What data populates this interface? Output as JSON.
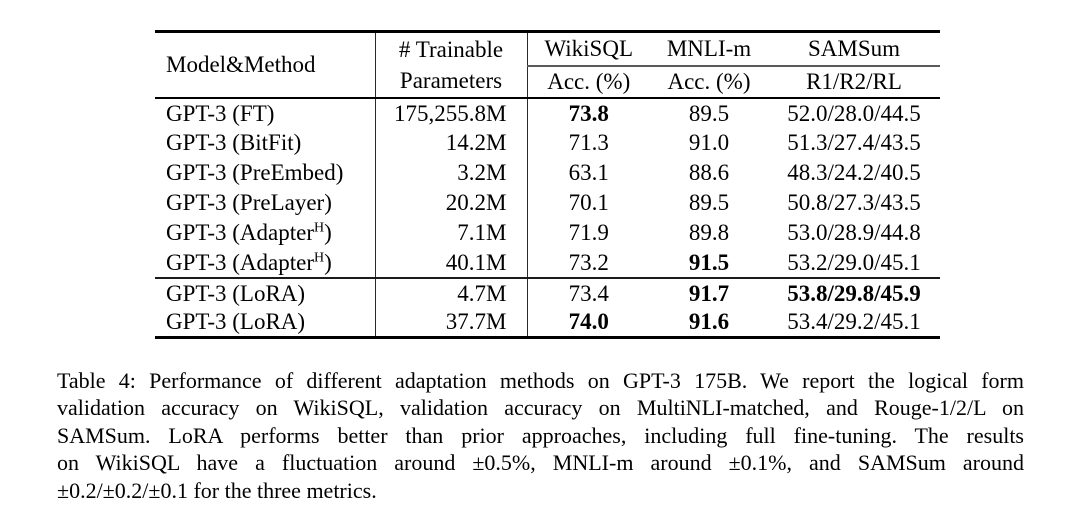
{
  "table": {
    "header": {
      "model_method": "Model&Method",
      "trainable_line1": "# Trainable",
      "trainable_line2": "Parameters",
      "groups": [
        {
          "title": "WikiSQL",
          "subtitle": "Acc. (%)"
        },
        {
          "title": "MNLI-m",
          "subtitle": "Acc. (%)"
        },
        {
          "title": "SAMSum",
          "subtitle": "R1/R2/RL"
        }
      ]
    },
    "groups": [
      {
        "rows": [
          {
            "model_prefix": "GPT-3 (FT)",
            "model_sup": "",
            "model_suffix": "",
            "params": "175,255.8M",
            "values": [
              "73.8",
              "89.5",
              "52.0/28.0/44.5"
            ],
            "bold": [
              true,
              false,
              false
            ]
          },
          {
            "model_prefix": "GPT-3 (BitFit)",
            "model_sup": "",
            "model_suffix": "",
            "params": "14.2M",
            "values": [
              "71.3",
              "91.0",
              "51.3/27.4/43.5"
            ],
            "bold": [
              false,
              false,
              false
            ]
          },
          {
            "model_prefix": "GPT-3 (PreEmbed)",
            "model_sup": "",
            "model_suffix": "",
            "params": "3.2M",
            "values": [
              "63.1",
              "88.6",
              "48.3/24.2/40.5"
            ],
            "bold": [
              false,
              false,
              false
            ]
          },
          {
            "model_prefix": "GPT-3 (PreLayer)",
            "model_sup": "",
            "model_suffix": "",
            "params": "20.2M",
            "values": [
              "70.1",
              "89.5",
              "50.8/27.3/43.5"
            ],
            "bold": [
              false,
              false,
              false
            ]
          },
          {
            "model_prefix": "GPT-3 (Adapter",
            "model_sup": "H",
            "model_suffix": ")",
            "params": "7.1M",
            "values": [
              "71.9",
              "89.8",
              "53.0/28.9/44.8"
            ],
            "bold": [
              false,
              false,
              false
            ]
          },
          {
            "model_prefix": "GPT-3 (Adapter",
            "model_sup": "H",
            "model_suffix": ")",
            "params": "40.1M",
            "values": [
              "73.2",
              "91.5",
              "53.2/29.0/45.1"
            ],
            "bold": [
              false,
              true,
              false
            ]
          }
        ]
      },
      {
        "rows": [
          {
            "model_prefix": "GPT-3 (LoRA)",
            "model_sup": "",
            "model_suffix": "",
            "params": "4.7M",
            "values": [
              "73.4",
              "91.7",
              "53.8/29.8/45.9"
            ],
            "bold": [
              false,
              true,
              true
            ]
          },
          {
            "model_prefix": "GPT-3 (LoRA)",
            "model_sup": "",
            "model_suffix": "",
            "params": "37.7M",
            "values": [
              "74.0",
              "91.6",
              "53.4/29.2/45.1"
            ],
            "bold": [
              true,
              true,
              false
            ]
          }
        ]
      }
    ]
  },
  "caption": {
    "lines": [
      "Table 4: Performance of different adaptation methods on GPT-3 175B. We report the logical form",
      "validation accuracy on WikiSQL, validation accuracy on MultiNLI-matched, and Rouge-1/2/L on",
      "SAMSum. LoRA performs better than prior approaches, including full fine-tuning. The results",
      "on WikiSQL have a fluctuation around ±0.5%, MNLI-m around ±0.1%, and SAMSum around",
      "±0.2/±0.2/±0.1 for the three metrics."
    ]
  }
}
